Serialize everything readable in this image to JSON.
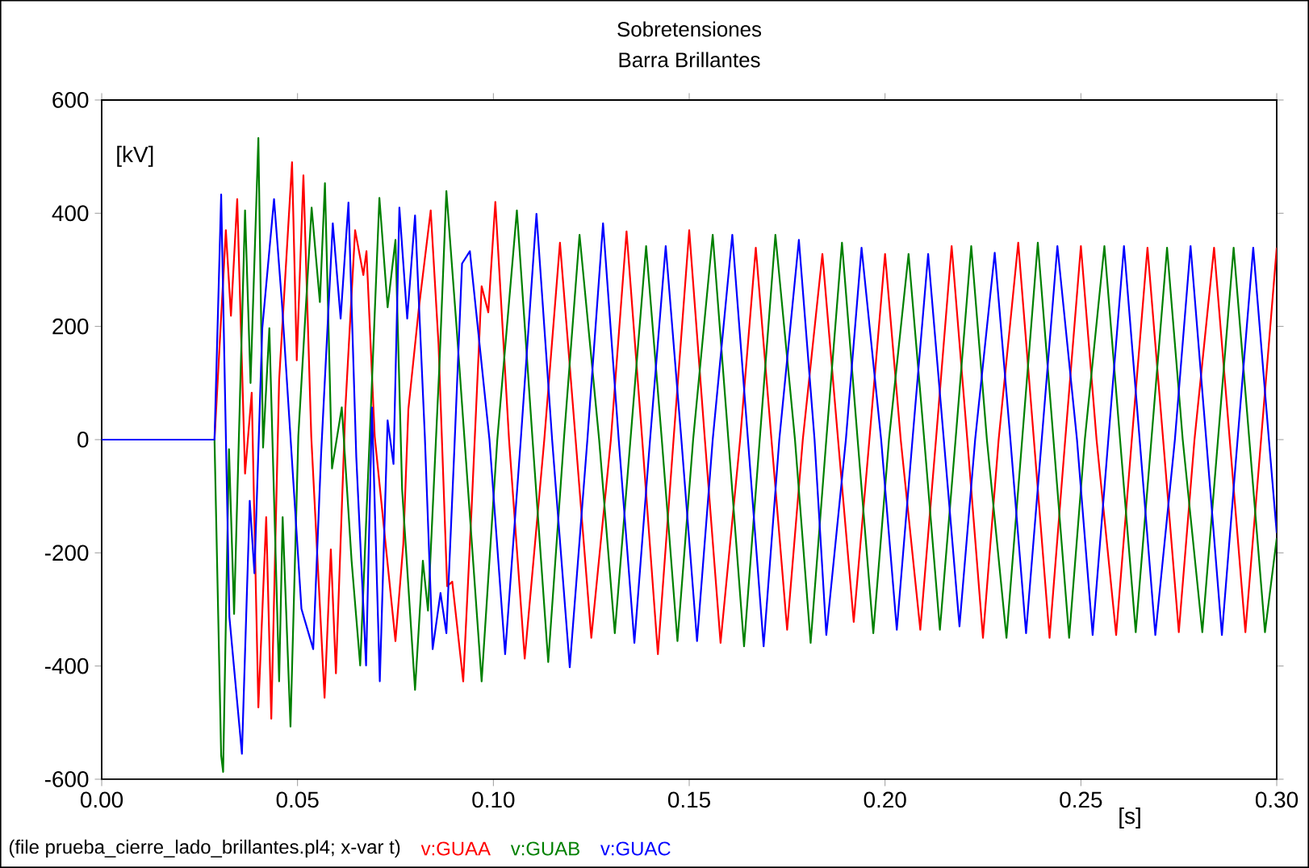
{
  "chart_data": {
    "type": "line",
    "title": "Sobretensiones",
    "subtitle": "Barra Brillantes",
    "xlabel": "[s]",
    "ylabel": "[kV]",
    "annotations": [
      "(file prueba_cierre_lado_brillantes.pl4; x-var t)"
    ],
    "xlim": [
      0,
      0.3
    ],
    "ylim": [
      -600,
      600
    ],
    "xticks": [
      {
        "value": 0,
        "label": "0.00"
      },
      {
        "value": 0.05,
        "label": "0.05"
      },
      {
        "value": 0.1,
        "label": "0.10"
      },
      {
        "value": 0.15,
        "label": "0.15"
      },
      {
        "value": 0.2,
        "label": "0.20"
      },
      {
        "value": 0.25,
        "label": "0.25"
      },
      {
        "value": 0.3,
        "label": "0.30"
      }
    ],
    "yticks": [
      -600,
      -400,
      -200,
      0,
      200,
      400,
      600
    ],
    "grid": false,
    "legend": "bottom",
    "marker": "none",
    "line_style": "solid",
    "series": [
      {
        "name": "v:GUAA",
        "color": "#ff0000",
        "x": [
          0.0288,
          0.0317,
          0.033,
          0.0346,
          0.0366,
          0.0383,
          0.04,
          0.042,
          0.0433,
          0.0453,
          0.0486,
          0.0498,
          0.0515,
          0.0535,
          0.0569,
          0.0585,
          0.0598,
          0.0622,
          0.0647,
          0.0668,
          0.0676,
          0.0697,
          0.075,
          0.077,
          0.0783,
          0.081,
          0.084,
          0.086,
          0.0882,
          0.0895,
          0.0923,
          0.0944,
          0.097,
          0.0987,
          0.1005,
          0.104,
          0.108,
          0.113,
          0.117,
          0.121,
          0.125,
          0.13,
          0.134,
          0.138,
          0.142,
          0.146,
          0.15,
          0.154,
          0.158,
          0.163,
          0.167,
          0.171,
          0.175,
          0.179,
          0.184,
          0.188,
          0.192,
          0.196,
          0.2,
          0.204,
          0.209,
          0.213,
          0.217,
          0.221,
          0.225,
          0.229,
          0.234,
          0.238,
          0.242,
          0.246,
          0.25,
          0.254,
          0.259,
          0.263,
          0.267,
          0.271,
          0.275,
          0.279,
          0.284,
          0.288,
          0.292,
          0.296,
          0.3
        ],
        "values": [
          0,
          370,
          219,
          425,
          -60,
          83,
          -473,
          -137,
          -493,
          105,
          490,
          140,
          467,
          6,
          -456,
          -194,
          -413,
          54,
          370,
          291,
          333,
          6,
          -356,
          -185,
          54,
          234,
          405,
          168,
          -259,
          -251,
          -427,
          -128,
          271,
          225,
          420,
          0,
          -387,
          0,
          348,
          0,
          -350,
          0,
          368,
          0,
          -379,
          0,
          370,
          0,
          -359,
          0,
          339,
          0,
          -336,
          0,
          328,
          0,
          -322,
          0,
          328,
          0,
          -336,
          0,
          342,
          0,
          -350,
          0,
          348,
          0,
          -350,
          0,
          342,
          0,
          -345,
          0,
          339,
          0,
          -340,
          0,
          339,
          0,
          -340,
          0,
          339
        ]
      },
      {
        "name": "v:GUAB",
        "color": "#008000",
        "x": [
          0.0288,
          0.0305,
          0.031,
          0.0325,
          0.0338,
          0.0366,
          0.038,
          0.04,
          0.0412,
          0.0428,
          0.0453,
          0.0462,
          0.0482,
          0.0502,
          0.0536,
          0.0557,
          0.057,
          0.0588,
          0.0613,
          0.0638,
          0.066,
          0.0688,
          0.0709,
          0.073,
          0.075,
          0.0767,
          0.08,
          0.082,
          0.0833,
          0.0862,
          0.088,
          0.0906,
          0.097,
          0.101,
          0.106,
          0.11,
          0.114,
          0.118,
          0.122,
          0.127,
          0.131,
          0.135,
          0.139,
          0.143,
          0.147,
          0.151,
          0.156,
          0.16,
          0.164,
          0.168,
          0.172,
          0.177,
          0.181,
          0.185,
          0.189,
          0.193,
          0.197,
          0.201,
          0.206,
          0.21,
          0.214,
          0.218,
          0.222,
          0.226,
          0.231,
          0.235,
          0.239,
          0.243,
          0.247,
          0.251,
          0.256,
          0.26,
          0.264,
          0.268,
          0.272,
          0.276,
          0.281,
          0.285,
          0.289,
          0.293,
          0.297,
          0.3
        ],
        "values": [
          0,
          -558,
          -587,
          -17,
          -308,
          405,
          100,
          533,
          -14,
          197,
          -427,
          -137,
          -507,
          6,
          410,
          243,
          453,
          -51,
          57,
          -214,
          -399,
          68,
          427,
          234,
          353,
          -88,
          -442,
          -214,
          -302,
          128,
          439,
          199,
          -427,
          0,
          405,
          0,
          -393,
          0,
          362,
          0,
          -342,
          0,
          342,
          0,
          -356,
          0,
          362,
          0,
          -365,
          0,
          362,
          0,
          -359,
          0,
          348,
          0,
          -342,
          0,
          328,
          0,
          -336,
          0,
          342,
          0,
          -350,
          0,
          348,
          0,
          -350,
          0,
          342,
          0,
          -340,
          0,
          339,
          0,
          -340,
          0,
          339,
          0,
          -340,
          -174
        ]
      },
      {
        "name": "v:GUAC",
        "color": "#0000ff",
        "x": [
          0,
          0.0288,
          0.0305,
          0.0326,
          0.0358,
          0.0378,
          0.039,
          0.041,
          0.044,
          0.046,
          0.051,
          0.054,
          0.056,
          0.059,
          0.061,
          0.063,
          0.065,
          0.0675,
          0.069,
          0.071,
          0.073,
          0.0745,
          0.076,
          0.078,
          0.08,
          0.0825,
          0.0845,
          0.0865,
          0.088,
          0.09,
          0.092,
          0.094,
          0.099,
          0.103,
          0.107,
          0.111,
          0.115,
          0.1195,
          0.124,
          0.128,
          0.132,
          0.136,
          0.14,
          0.144,
          0.148,
          0.152,
          0.156,
          0.161,
          0.165,
          0.169,
          0.173,
          0.178,
          0.182,
          0.185,
          0.19,
          0.194,
          0.199,
          0.203,
          0.207,
          0.211,
          0.215,
          0.219,
          0.223,
          0.228,
          0.232,
          0.236,
          0.24,
          0.244,
          0.249,
          0.253,
          0.257,
          0.261,
          0.265,
          0.269,
          0.274,
          0.278,
          0.282,
          0.286,
          0.29,
          0.294,
          0.298,
          0.3
        ],
        "values": [
          0,
          0,
          433,
          -313,
          -555,
          -108,
          -236,
          197,
          425,
          243,
          -299,
          -370,
          -28,
          382,
          214,
          419,
          -31,
          -399,
          57,
          -427,
          34,
          -43,
          410,
          214,
          396,
          6,
          -370,
          -271,
          -342,
          -23,
          311,
          333,
          0,
          -379,
          0,
          399,
          0,
          -402,
          0,
          382,
          0,
          -359,
          0,
          342,
          0,
          -356,
          0,
          362,
          0,
          -365,
          0,
          353,
          0,
          -345,
          0,
          339,
          0,
          -336,
          0,
          328,
          0,
          -330,
          0,
          330,
          0,
          -342,
          0,
          342,
          0,
          -345,
          0,
          342,
          0,
          -345,
          0,
          342,
          0,
          -345,
          0,
          339,
          0,
          -165
        ]
      }
    ]
  }
}
